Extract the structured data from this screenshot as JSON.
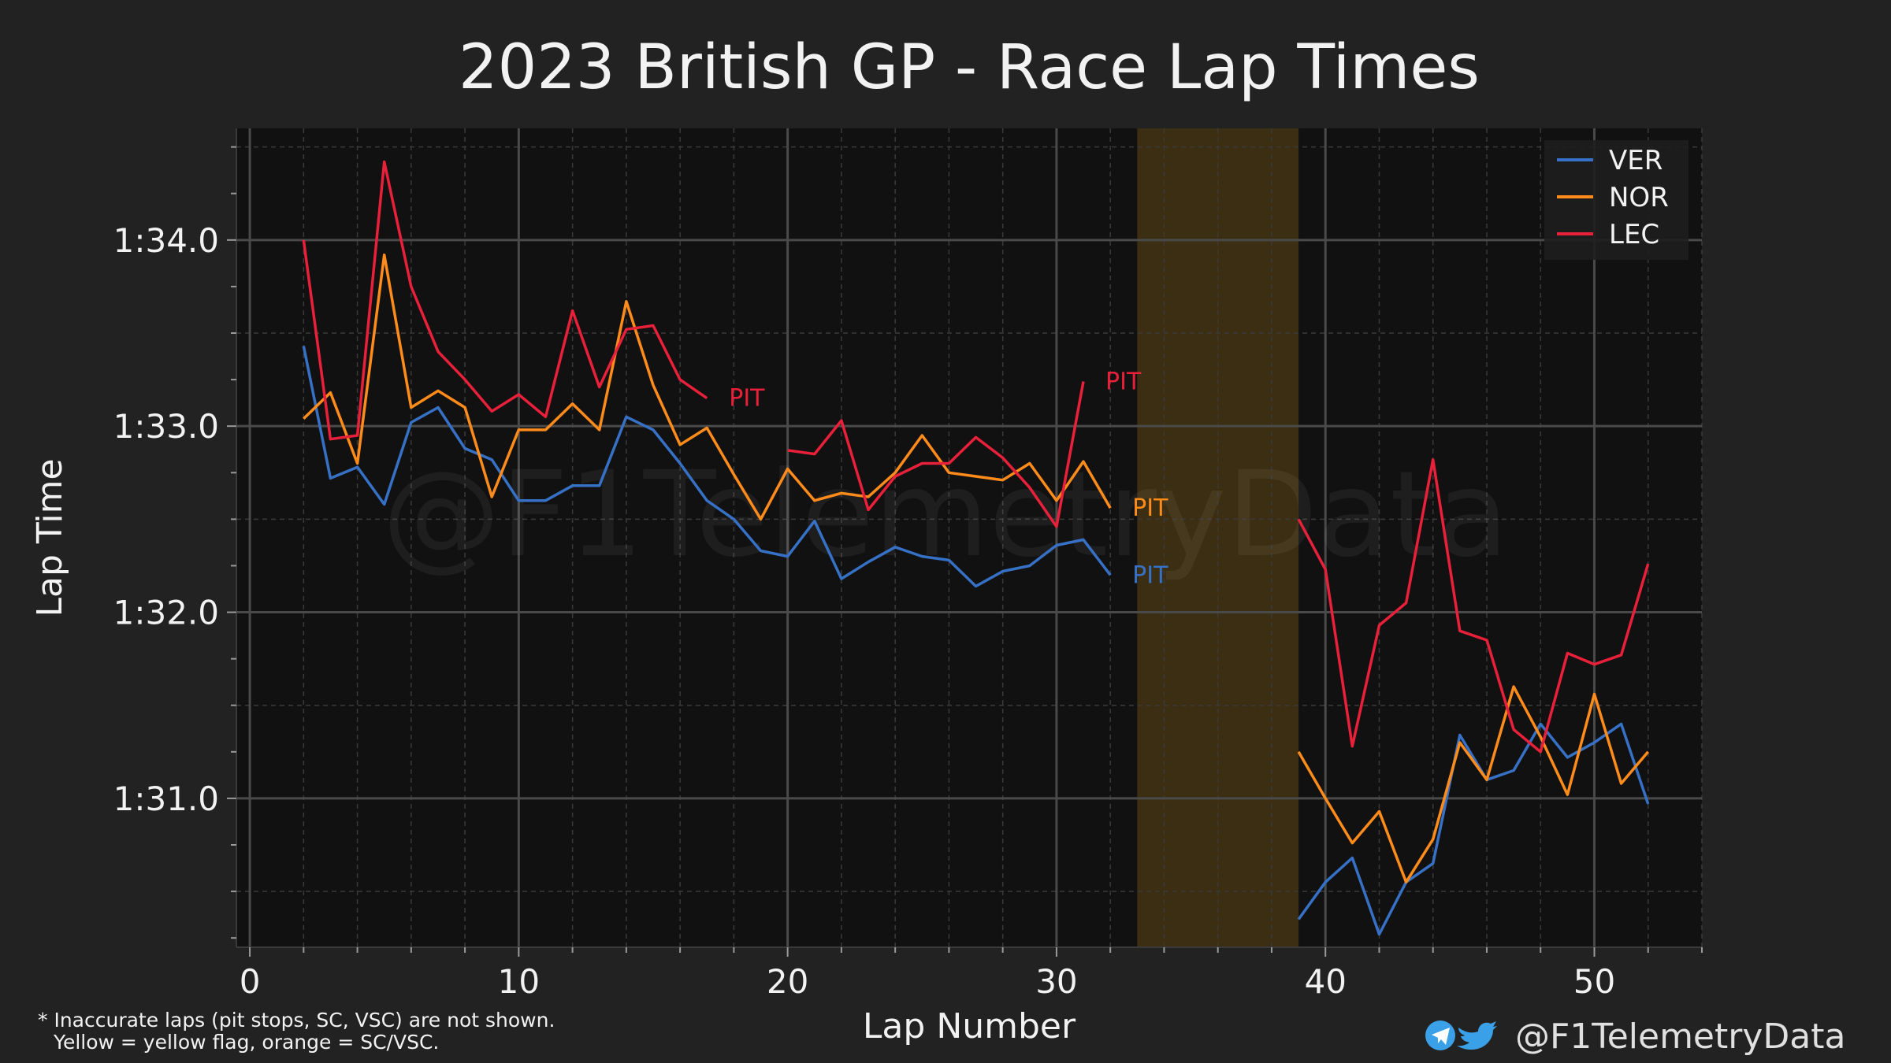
{
  "chart_data": {
    "type": "line",
    "title": "2023 British GP - Race Lap Times",
    "xlabel": "Lap Number",
    "ylabel": "Lap Time",
    "xlim": [
      -0.5,
      54
    ],
    "ylim": [
      90.2,
      94.6
    ],
    "x_ticks": [
      0,
      10,
      20,
      30,
      40,
      50
    ],
    "y_ticks": [
      {
        "value": 91.0,
        "label": "1:31.0"
      },
      {
        "value": 92.0,
        "label": "1:32.0"
      },
      {
        "value": 93.0,
        "label": "1:33.0"
      },
      {
        "value": 94.0,
        "label": "1:34.0"
      }
    ],
    "grid": true,
    "legend_position": "top-right",
    "highlight_regions": [
      {
        "x_start": 33,
        "x_end": 39,
        "color": "#3c2e12",
        "meaning": "SC/VSC"
      }
    ],
    "series": [
      {
        "name": "VER",
        "color": "#3671C6",
        "segments": [
          {
            "x": [
              2,
              3,
              4,
              5,
              6,
              7,
              8,
              9,
              10,
              11,
              12,
              13,
              14,
              15,
              16,
              17,
              18,
              19,
              20,
              21,
              22,
              23,
              24,
              25,
              26,
              27,
              28,
              29,
              30,
              31,
              32
            ],
            "y": [
              93.43,
              92.72,
              92.78,
              92.58,
              93.02,
              93.1,
              92.88,
              92.82,
              92.6,
              92.6,
              92.68,
              92.68,
              93.05,
              92.98,
              92.8,
              92.6,
              92.5,
              92.33,
              92.3,
              92.49,
              92.18,
              92.27,
              92.35,
              92.3,
              92.28,
              92.14,
              92.22,
              92.25,
              92.36,
              92.39,
              92.2
            ]
          },
          {
            "x": [
              39,
              40,
              41,
              42,
              43,
              44,
              45,
              46,
              47,
              48,
              49,
              50,
              51,
              52
            ],
            "y": [
              90.35,
              90.55,
              90.68,
              90.27,
              90.55,
              90.65,
              91.34,
              91.1,
              91.15,
              91.4,
              91.22,
              91.3,
              91.4,
              90.97
            ]
          }
        ],
        "pit": {
          "x": 32,
          "y": 92.2,
          "label": "PIT"
        }
      },
      {
        "name": "NOR",
        "color": "#FF8C1A",
        "segments": [
          {
            "x": [
              2,
              3,
              4,
              5,
              6,
              7,
              8,
              9,
              10,
              11,
              12,
              13,
              14,
              15,
              16,
              17,
              18,
              19,
              20,
              21,
              22,
              23,
              24,
              25,
              26,
              27,
              28,
              29,
              30,
              31,
              32
            ],
            "y": [
              93.04,
              93.18,
              92.8,
              93.92,
              93.1,
              93.19,
              93.1,
              92.62,
              92.98,
              92.98,
              93.12,
              92.98,
              93.67,
              93.22,
              92.9,
              92.99,
              92.74,
              92.5,
              92.77,
              92.6,
              92.64,
              92.62,
              92.75,
              92.95,
              92.75,
              92.73,
              92.71,
              92.8,
              92.6,
              92.81,
              92.56
            ]
          },
          {
            "x": [
              39,
              40,
              41,
              42,
              43,
              44,
              45,
              46,
              47,
              48,
              49,
              50,
              51,
              52
            ],
            "y": [
              91.25,
              91.0,
              90.76,
              90.93,
              90.55,
              90.78,
              91.3,
              91.1,
              91.6,
              91.33,
              91.02,
              91.56,
              91.08,
              91.25
            ]
          }
        ],
        "pit": {
          "x": 32,
          "y": 92.56,
          "label": "PIT"
        }
      },
      {
        "name": "LEC",
        "color": "#E8203A",
        "segments": [
          {
            "x": [
              2,
              3,
              4,
              5,
              6,
              7,
              8,
              9,
              10,
              11,
              12,
              13,
              14,
              15,
              16,
              17
            ],
            "y": [
              94.0,
              92.93,
              92.95,
              94.42,
              93.75,
              93.4,
              93.25,
              93.08,
              93.17,
              93.05,
              93.62,
              93.21,
              93.52,
              93.54,
              93.25,
              93.15
            ]
          },
          {
            "x": [
              20,
              21,
              22,
              23,
              24,
              25,
              26,
              27,
              28,
              29,
              30,
              31
            ],
            "y": [
              92.87,
              92.85,
              93.03,
              92.55,
              92.73,
              92.8,
              92.8,
              92.94,
              92.83,
              92.67,
              92.46,
              93.24
            ]
          },
          {
            "x": [
              39,
              40,
              41,
              42,
              43,
              44,
              45,
              46,
              47,
              48,
              49,
              50,
              51,
              52
            ],
            "y": [
              92.5,
              92.23,
              91.28,
              91.93,
              92.05,
              92.82,
              91.9,
              91.85,
              91.37,
              91.25,
              91.78,
              91.72,
              91.77,
              92.26
            ]
          }
        ],
        "pits": [
          {
            "x": 17,
            "y": 93.15,
            "label": "PIT"
          },
          {
            "x": 31,
            "y": 93.24,
            "label": "PIT"
          }
        ]
      }
    ],
    "watermark": "@F1TelemetryData"
  },
  "footnote": {
    "line1": "* Inaccurate laps (pit stops, SC, VSC) are not shown.",
    "line2": "Yellow = yellow flag, orange = SC/VSC."
  },
  "branding": {
    "handle": "@F1TelemetryData",
    "icons": [
      "telegram-icon",
      "twitter-icon"
    ],
    "icon_color": "#3aa0e8"
  }
}
